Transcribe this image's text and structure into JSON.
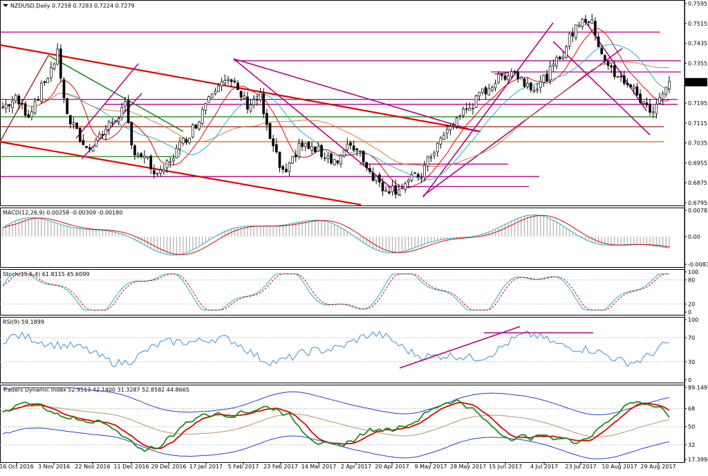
{
  "header": {
    "symbol_line": "NZDUSD,Daily  0.7258 0.7283 0.7224 0.7279"
  },
  "current_price_label": "0.7279",
  "chart_data": [
    {
      "type": "candlestick",
      "title": "NZDUSD,Daily  0.7258 0.7283 0.7224 0.7279",
      "ylim": [
        0.6795,
        0.7595
      ],
      "y_ticks": [
        "0.7595",
        "0.7515",
        "0.7435",
        "0.7355",
        "0.7279",
        "0.7195",
        "0.7115",
        "0.7035",
        "0.6955",
        "0.6875",
        "0.6795"
      ],
      "x_ticks": [
        "16 Oct 2016",
        "3 Nov 2016",
        "22 Nov 2016",
        "11 Dec 2016",
        "29 Dec 2016",
        "17 Jan 2017",
        "5 Feb 2017",
        "23 Feb 2017",
        "14 Mar 2017",
        "2 Apr 2017",
        "20 Apr 2017",
        "9 May 2017",
        "28 May 2017",
        "15 Jun 2017",
        "4 Jul 2017",
        "23 Jul 2017",
        "10 Aug 2017",
        "29 Aug 2017"
      ],
      "close_path": [
        [
          0,
          0.718
        ],
        [
          4,
          0.721
        ],
        [
          8,
          0.715
        ],
        [
          13,
          0.728
        ],
        [
          17,
          0.739
        ],
        [
          20,
          0.714
        ],
        [
          26,
          0.701
        ],
        [
          32,
          0.709
        ],
        [
          38,
          0.718
        ],
        [
          40,
          0.702
        ],
        [
          45,
          0.696
        ],
        [
          48,
          0.689
        ],
        [
          52,
          0.697
        ],
        [
          56,
          0.704
        ],
        [
          60,
          0.711
        ],
        [
          64,
          0.723
        ],
        [
          68,
          0.73
        ],
        [
          72,
          0.726
        ],
        [
          76,
          0.719
        ],
        [
          80,
          0.722
        ],
        [
          82,
          0.709
        ],
        [
          86,
          0.694
        ],
        [
          88,
          0.69
        ],
        [
          92,
          0.703
        ],
        [
          96,
          0.701
        ],
        [
          100,
          0.699
        ],
        [
          104,
          0.696
        ],
        [
          108,
          0.703
        ],
        [
          111,
          0.7
        ],
        [
          114,
          0.692
        ],
        [
          118,
          0.686
        ],
        [
          122,
          0.685
        ],
        [
          126,
          0.688
        ],
        [
          130,
          0.691
        ],
        [
          134,
          0.701
        ],
        [
          138,
          0.708
        ],
        [
          142,
          0.715
        ],
        [
          146,
          0.719
        ],
        [
          150,
          0.725
        ],
        [
          154,
          0.729
        ],
        [
          158,
          0.733
        ],
        [
          162,
          0.728
        ],
        [
          166,
          0.726
        ],
        [
          170,
          0.732
        ],
        [
          174,
          0.74
        ],
        [
          177,
          0.748
        ],
        [
          180,
          0.754
        ],
        [
          183,
          0.751
        ],
        [
          186,
          0.74
        ],
        [
          190,
          0.73
        ],
        [
          194,
          0.728
        ],
        [
          198,
          0.721
        ],
        [
          201,
          0.716
        ],
        [
          204,
          0.722
        ],
        [
          207,
          0.7279
        ]
      ],
      "horizontal_levels": [
        {
          "y": 0.748,
          "color": "#b0008c"
        },
        {
          "y": 0.7365,
          "color": "#b0008c"
        },
        {
          "y": 0.732,
          "color": "#b0008c"
        },
        {
          "y": 0.721,
          "color": "#b0008c"
        },
        {
          "y": 0.719,
          "color": "#b0008c"
        },
        {
          "y": 0.714,
          "color": "#1f8a1f"
        },
        {
          "y": 0.71,
          "color": "#a0322a"
        },
        {
          "y": 0.704,
          "color": "#ff6a00"
        },
        {
          "y": 0.698,
          "color": "#1f8a1f"
        },
        {
          "y": 0.695,
          "color": "#b0008c"
        },
        {
          "y": 0.69,
          "color": "#b0008c"
        },
        {
          "y": 0.686,
          "color": "#b0008c"
        }
      ]
    },
    {
      "type": "line",
      "title": "MACD(12,26,9) 0.00258 -0.00309 -0.00180",
      "y_ticks": [
        "0.00783",
        "0.00",
        "-0.0083"
      ],
      "ylim": [
        -0.0083,
        0.00783
      ]
    },
    {
      "type": "line",
      "title": "Stoch(15,5,4) 61.8115 45.6099",
      "y_ticks": [
        "100",
        "80",
        "20",
        "0"
      ],
      "ylim": [
        0,
        100
      ]
    },
    {
      "type": "line",
      "title": "RSI(9) 59.1899",
      "y_ticks": [
        "100",
        "70",
        "30",
        "0"
      ],
      "ylim": [
        0,
        100
      ]
    },
    {
      "type": "line",
      "title": "Traders Dynamic Index 52.9513 42.1400 31.3287 52.8582 44.8665",
      "y_ticks": [
        "89.1495",
        "68",
        "50",
        "32",
        "17.39948"
      ],
      "ylim": [
        17.39948,
        89.1495
      ]
    }
  ],
  "colors": {
    "candle": "#000000",
    "magenta": "#b0008c",
    "red": "#e00000",
    "green": "#1f8a1f",
    "orange": "#ff6a00",
    "brown": "#a0322a",
    "teal": "#20b0d0",
    "blue": "#1f3fd0",
    "macd_signal": "#e00000",
    "tdi_green": "#1f8a1f"
  }
}
